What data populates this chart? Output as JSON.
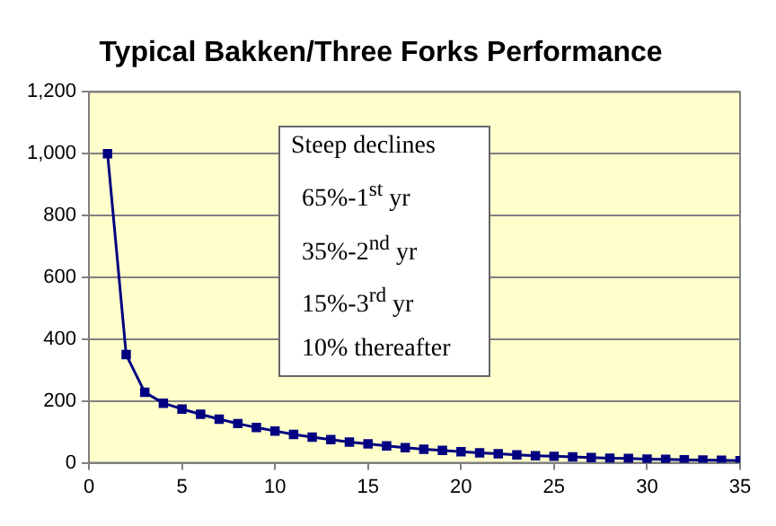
{
  "chart_data": {
    "type": "line",
    "title": "Typical Bakken/Three Forks Performance",
    "x": [
      1,
      2,
      3,
      4,
      5,
      6,
      7,
      8,
      9,
      10,
      11,
      12,
      13,
      14,
      15,
      16,
      17,
      18,
      19,
      20,
      21,
      22,
      23,
      24,
      25,
      26,
      27,
      28,
      29,
      30,
      31,
      32,
      33,
      34,
      35
    ],
    "series": [
      {
        "color": "#000080",
        "values": [
          1000,
          350,
          228,
          193,
          174,
          157,
          141,
          127,
          114,
          103,
          92,
          83,
          75,
          67,
          61,
          55,
          49,
          44,
          40,
          36,
          32,
          29,
          26,
          23,
          21,
          19,
          17,
          15,
          14,
          12,
          11,
          10,
          9,
          8,
          7
        ]
      }
    ],
    "xlim": [
      0,
      35
    ],
    "xticks": [
      0,
      5,
      10,
      15,
      20,
      25,
      30,
      35
    ],
    "ylim": [
      0,
      1200
    ],
    "yticks": [
      0,
      {
        "value": 200,
        "label": "200"
      },
      {
        "value": 400,
        "label": "400"
      },
      {
        "value": 600,
        "label": "600"
      },
      {
        "value": 800,
        "label": "800"
      },
      {
        "value": 1000,
        "label": "1,000"
      },
      {
        "value": 1200,
        "label": "1,200"
      }
    ],
    "grid": "y",
    "legend": false,
    "marker": "square",
    "line_style": "solid",
    "annotations": [
      "Steep declines",
      "65%-1$^{st}$ yr",
      "35%-2$^{nd}$ yr",
      "15%-3$^{rd}$ yr",
      "10% thereafter"
    ]
  }
}
